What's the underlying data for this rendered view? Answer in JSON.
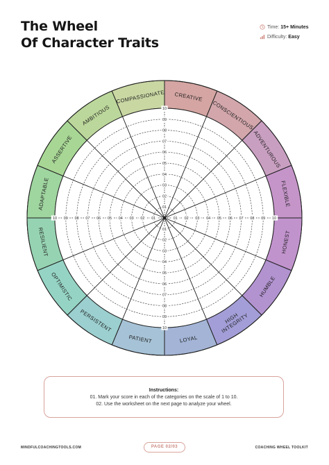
{
  "header": {
    "title_line1": "The Wheel",
    "title_line2": "Of Character Traits",
    "time_label": "Time:",
    "time_value": "15+ Minutes",
    "difficulty_label": "Difficulty:",
    "difficulty_value": "Easy"
  },
  "wheel": {
    "traits": [
      {
        "label": "CREATIVE",
        "color": "#d4a5a2"
      },
      {
        "label": "CONSCIENTIOUS",
        "color": "#d2a6ab"
      },
      {
        "label": "ADVENTUROUS",
        "color": "#c99fc1"
      },
      {
        "label": "FLEXIBLE",
        "color": "#c595c9"
      },
      {
        "label": "HONEST",
        "color": "#c193cd"
      },
      {
        "label": "HUMBLE",
        "color": "#b293d0"
      },
      {
        "label": "HIGH INTEGRITY",
        "color": "#a39ed7"
      },
      {
        "label": "LOYAL",
        "color": "#a3b4d6"
      },
      {
        "label": "PATIENT",
        "color": "#a6c2d6"
      },
      {
        "label": "PERSISTENT",
        "color": "#9ccfcf"
      },
      {
        "label": "OPTIMISTIC",
        "color": "#95d4c4"
      },
      {
        "label": "RESILIENT",
        "color": "#96d3b2"
      },
      {
        "label": "ADAPTABLE",
        "color": "#9fd59f"
      },
      {
        "label": "ASSERTIVE",
        "color": "#a8d795"
      },
      {
        "label": "AMBITIOUS",
        "color": "#bcd79b"
      },
      {
        "label": "COMPASSIONATE",
        "color": "#c9d7a3"
      }
    ],
    "scale": [
      "01",
      "02",
      "03",
      "04",
      "05",
      "06",
      "07",
      "08",
      "09",
      "10"
    ]
  },
  "instructions": {
    "title": "Instructions:",
    "line1": "01. Mark your score in each of the categories on the scale of 1 to 10.",
    "line2": "02. Use the worksheet on the next page to analyze your wheel."
  },
  "footer": {
    "left": "MINDFULCOACHINGTOOLS.COM",
    "page": "PAGE 02/03",
    "right": "COACHING WHEEL TOOLKIT"
  }
}
